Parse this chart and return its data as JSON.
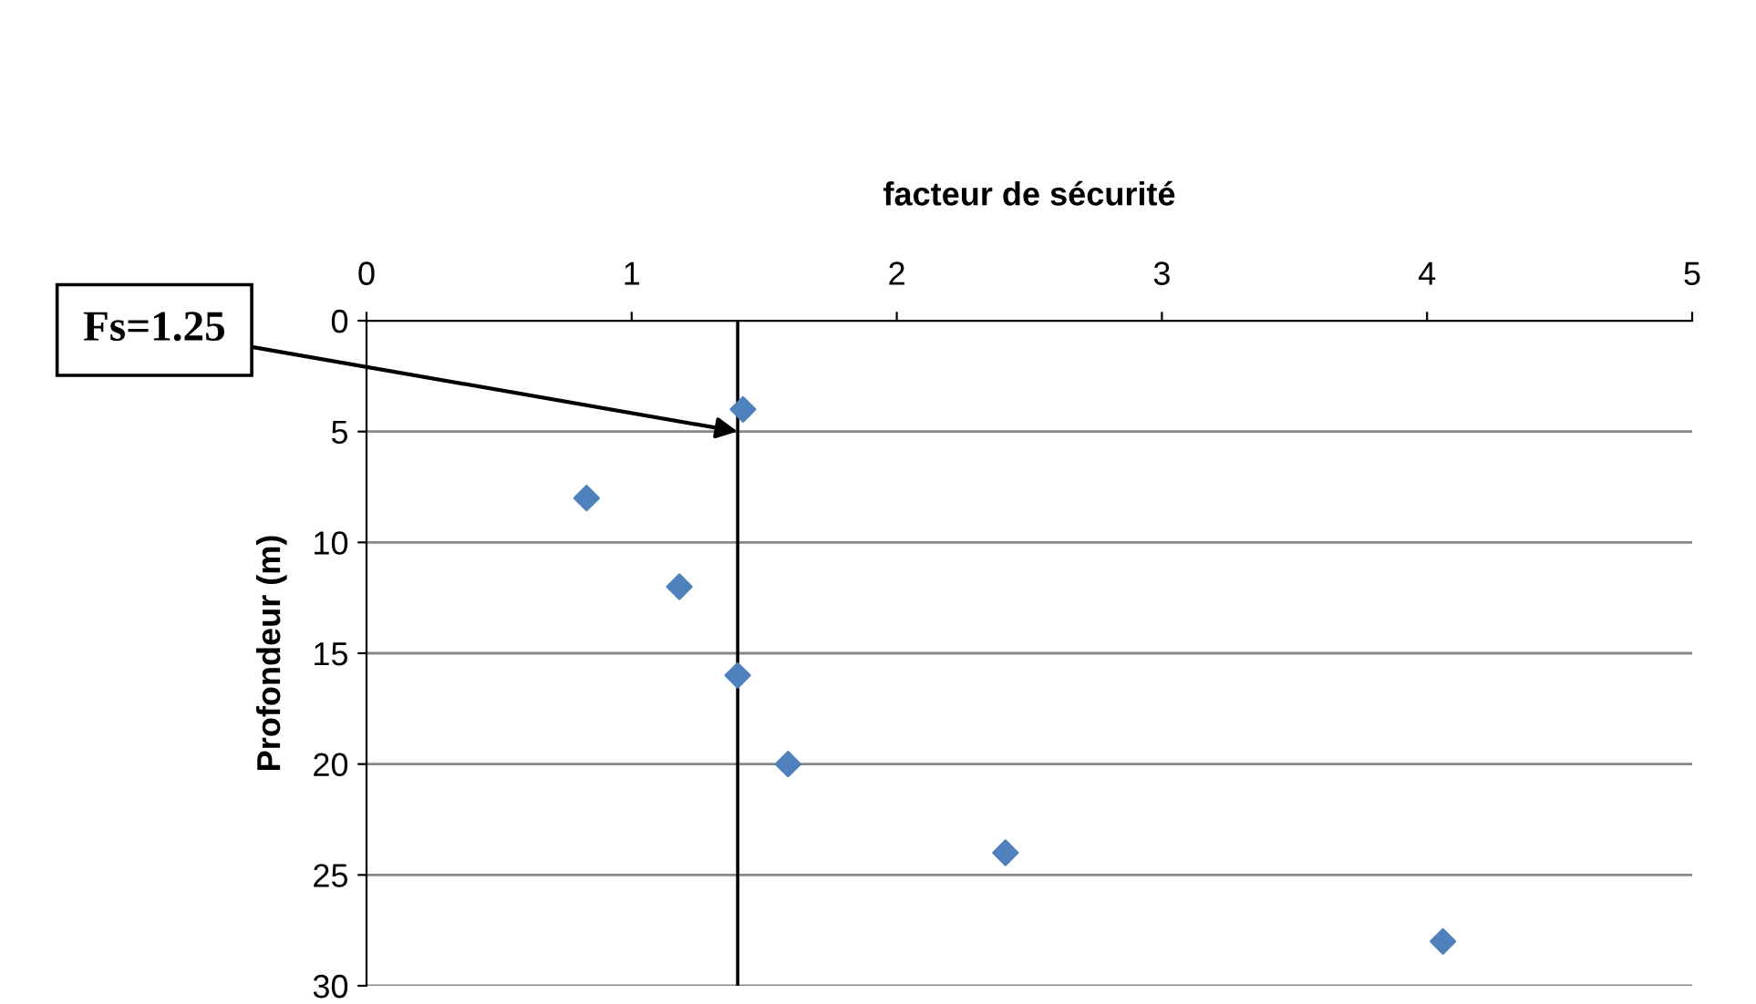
{
  "chart_data": {
    "type": "scatter",
    "xlabel": "facteur de sécurité",
    "ylabel": "Profondeur (m)",
    "x": [
      1.42,
      0.83,
      1.18,
      1.4,
      1.59,
      2.41,
      4.06
    ],
    "values": [
      4,
      8,
      12,
      16,
      20,
      24,
      28
    ],
    "color": "#4f81bd",
    "marker": "diamond",
    "xlim": [
      0,
      5
    ],
    "xticks": [
      0,
      1,
      2,
      3,
      4,
      5
    ],
    "ylim": [
      30,
      0
    ],
    "yticks": [
      0,
      5,
      10,
      15,
      20,
      25,
      30
    ],
    "grid": "y",
    "legend": false,
    "ref_lines": [
      {
        "axis": "x",
        "value": 1.4,
        "color": "#000000"
      }
    ],
    "annotations": [
      {
        "text": "Fs=1.25",
        "x": 1.4,
        "y": 5
      }
    ]
  }
}
